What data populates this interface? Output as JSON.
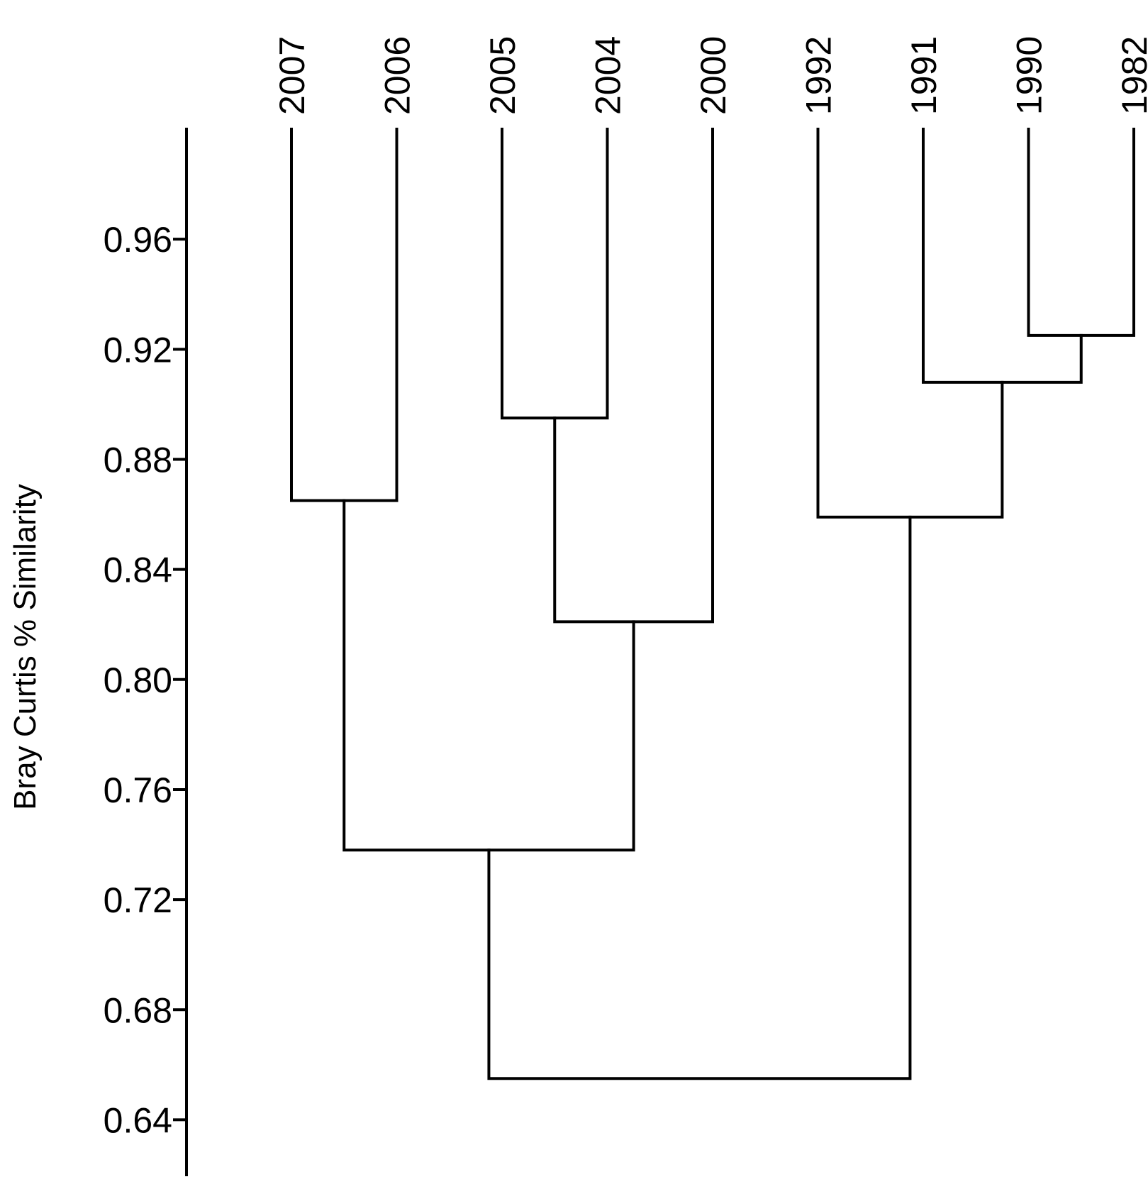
{
  "chart_data": {
    "type": "dendrogram",
    "ylabel": "Bray Curtis % Similarity",
    "ylim": [
      0.62,
      1.0
    ],
    "yticks": [
      "0.64",
      "0.68",
      "0.72",
      "0.76",
      "0.80",
      "0.84",
      "0.88",
      "0.92",
      "0.96"
    ],
    "leaves": [
      "2007",
      "2006",
      "2005",
      "2004",
      "2000",
      "1992",
      "1991",
      "1990",
      "1982"
    ],
    "leaf_top": 1.0,
    "merges": [
      {
        "id": "m1",
        "left": "2007",
        "right": "2006",
        "similarity": 0.865
      },
      {
        "id": "m2",
        "left": "2005",
        "right": "2004",
        "similarity": 0.895
      },
      {
        "id": "m3",
        "left": "m2",
        "right": "2000",
        "similarity": 0.821
      },
      {
        "id": "m4",
        "left": "m1",
        "right": "m3",
        "similarity": 0.738
      },
      {
        "id": "m5",
        "left": "1990",
        "right": "1982",
        "similarity": 0.925
      },
      {
        "id": "m6",
        "left": "1991",
        "right": "m5",
        "similarity": 0.908
      },
      {
        "id": "m7",
        "left": "1992",
        "right": "m6",
        "similarity": 0.859
      },
      {
        "id": "m8",
        "left": "m4",
        "right": "m7",
        "similarity": 0.655
      }
    ]
  }
}
